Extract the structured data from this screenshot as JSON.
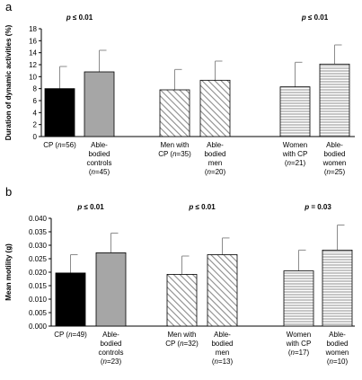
{
  "chart_data": [
    {
      "type": "bar",
      "panel_label": "a",
      "ylabel": "Duration of dynamic activities (%)",
      "ylim": [
        0,
        18
      ],
      "yticks": [
        "0",
        "2",
        "4",
        "6",
        "8",
        "10",
        "12",
        "14",
        "16",
        "18"
      ],
      "grid": false,
      "groups": [
        {
          "p_label": "p ≤ 0.01",
          "bars": [
            {
              "label_lines": [
                "CP (n=56)"
              ],
              "value": 8.0,
              "error": 3.7,
              "style": "solid-black"
            },
            {
              "label_lines": [
                "Able-",
                "bodied",
                "controls",
                "(n=45)"
              ],
              "value": 10.8,
              "error": 3.6,
              "style": "solid-gray"
            }
          ]
        },
        {
          "p_label": "",
          "bars": [
            {
              "label_lines": [
                "Men with",
                "CP (n=35)"
              ],
              "value": 7.8,
              "error": 3.4,
              "style": "diagonal-hatch"
            },
            {
              "label_lines": [
                "Able-",
                "bodied",
                "men",
                "(n=20)"
              ],
              "value": 9.4,
              "error": 3.2,
              "style": "diagonal-hatch"
            }
          ]
        },
        {
          "p_label": "p ≤ 0.01",
          "bars": [
            {
              "label_lines": [
                "Women",
                "with CP",
                "(n=21)"
              ],
              "value": 8.3,
              "error": 4.1,
              "style": "horizontal-lines"
            },
            {
              "label_lines": [
                "Able-",
                "bodied",
                "women",
                "(n=25)"
              ],
              "value": 12.1,
              "error": 3.2,
              "style": "horizontal-lines"
            }
          ]
        }
      ]
    },
    {
      "type": "bar",
      "panel_label": "b",
      "ylabel": "Mean motility (g)",
      "ylim": [
        0,
        0.04
      ],
      "yticks": [
        "0.000",
        "0.005",
        "0.010",
        "0.015",
        "0.020",
        "0.025",
        "0.030",
        "0.035",
        "0.040"
      ],
      "grid": false,
      "groups": [
        {
          "p_label": "p ≤ 0.01",
          "bars": [
            {
              "label_lines": [
                "CP (n=49)"
              ],
              "value": 0.0197,
              "error": 0.0068,
              "style": "solid-black"
            },
            {
              "label_lines": [
                "Able-",
                "bodied",
                "controls",
                "(n=23)"
              ],
              "value": 0.0272,
              "error": 0.0073,
              "style": "solid-gray"
            }
          ]
        },
        {
          "p_label": "p ≤ 0.01",
          "bars": [
            {
              "label_lines": [
                "Men with",
                "CP (n=32)"
              ],
              "value": 0.0192,
              "error": 0.0068,
              "style": "diagonal-hatch"
            },
            {
              "label_lines": [
                "Able-",
                "bodied",
                "men",
                "(n=13)"
              ],
              "value": 0.0265,
              "error": 0.0062,
              "style": "diagonal-hatch"
            }
          ]
        },
        {
          "p_label": "p = 0.03",
          "bars": [
            {
              "label_lines": [
                "Women",
                "with CP",
                "(n=17)"
              ],
              "value": 0.0205,
              "error": 0.0077,
              "style": "horizontal-lines"
            },
            {
              "label_lines": [
                "Able-",
                "bodied",
                "women",
                "(n=10)"
              ],
              "value": 0.0282,
              "error": 0.0093,
              "style": "horizontal-lines"
            }
          ]
        }
      ]
    }
  ]
}
